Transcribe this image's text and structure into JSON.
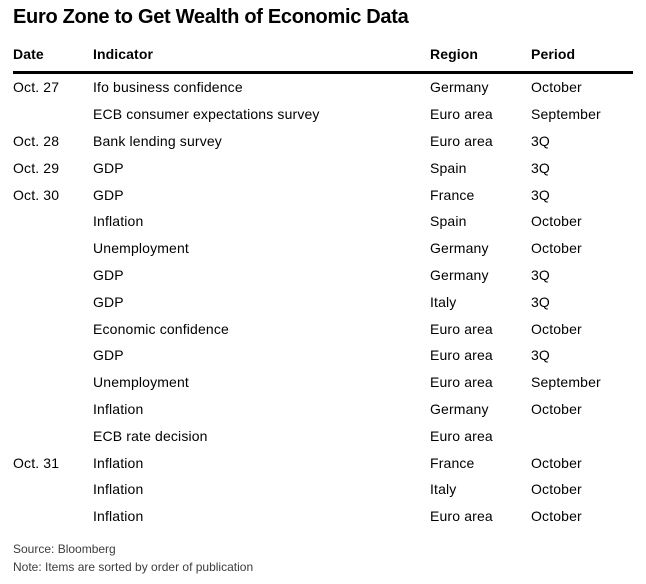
{
  "title": "Euro Zone to Get Wealth of Economic Data",
  "chart_data": {
    "type": "table",
    "title": "Euro Zone to Get Wealth of Economic Data",
    "columns": [
      "Date",
      "Indicator",
      "Region",
      "Period"
    ],
    "rows": [
      [
        "Oct. 27",
        "Ifo business confidence",
        "Germany",
        "October"
      ],
      [
        "",
        "ECB consumer expectations survey",
        "Euro area",
        "September"
      ],
      [
        "Oct. 28",
        "Bank lending survey",
        "Euro area",
        "3Q"
      ],
      [
        "Oct. 29",
        "GDP",
        "Spain",
        "3Q"
      ],
      [
        "Oct. 30",
        "GDP",
        "France",
        "3Q"
      ],
      [
        "",
        "Inflation",
        "Spain",
        "October"
      ],
      [
        "",
        "Unemployment",
        "Germany",
        "October"
      ],
      [
        "",
        "GDP",
        "Germany",
        "3Q"
      ],
      [
        "",
        "GDP",
        "Italy",
        "3Q"
      ],
      [
        "",
        "Economic confidence",
        "Euro area",
        "October"
      ],
      [
        "",
        "GDP",
        "Euro area",
        "3Q"
      ],
      [
        "",
        "Unemployment",
        "Euro area",
        "September"
      ],
      [
        "",
        "Inflation",
        "Germany",
        "October"
      ],
      [
        "",
        "ECB rate decision",
        "Euro area",
        ""
      ],
      [
        "Oct. 31",
        "Inflation",
        "France",
        "October"
      ],
      [
        "",
        "Inflation",
        "Italy",
        "October"
      ],
      [
        "",
        "Inflation",
        "Euro area",
        "October"
      ]
    ],
    "source": "Source: Bloomberg",
    "note": "Note: Items are sorted by order of publication",
    "layout": {
      "grid": "off",
      "header_rule_color": "#000000",
      "text_color": "#000000",
      "footnote_color": "#3d3d3d",
      "background_color": "#ffffff"
    }
  }
}
